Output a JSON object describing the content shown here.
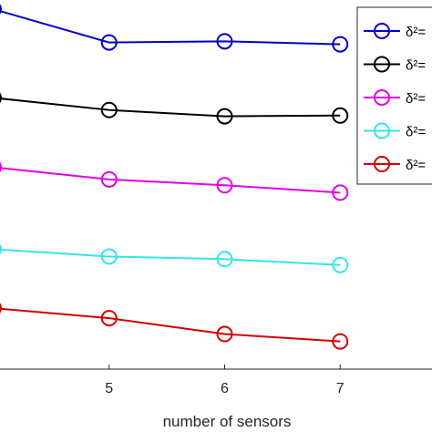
{
  "chart_data": {
    "type": "line",
    "title": "",
    "xlabel": "number of sensors",
    "ylabel": "",
    "x": [
      4,
      5,
      6,
      7
    ],
    "x_ticks": [
      5,
      6,
      7
    ],
    "xlim": [
      4,
      8
    ],
    "ylim": [
      0,
      1
    ],
    "grid": false,
    "legend_placement": "top-right",
    "series": [
      {
        "name": "δ²=",
        "color": "#0000c8",
        "values": [
          0.975,
          0.885,
          0.888,
          0.88
        ]
      },
      {
        "name": "δ²=",
        "color": "#000000",
        "values": [
          0.735,
          0.702,
          0.685,
          0.687
        ]
      },
      {
        "name": "δ²=",
        "color": "#e600e6",
        "values": [
          0.547,
          0.514,
          0.498,
          0.478
        ]
      },
      {
        "name": "δ²=",
        "color": "#33e6e6",
        "values": [
          0.325,
          0.305,
          0.298,
          0.282
        ]
      },
      {
        "name": "δ²=",
        "color": "#d40000",
        "values": [
          0.165,
          0.138,
          0.095,
          0.075
        ]
      }
    ]
  }
}
